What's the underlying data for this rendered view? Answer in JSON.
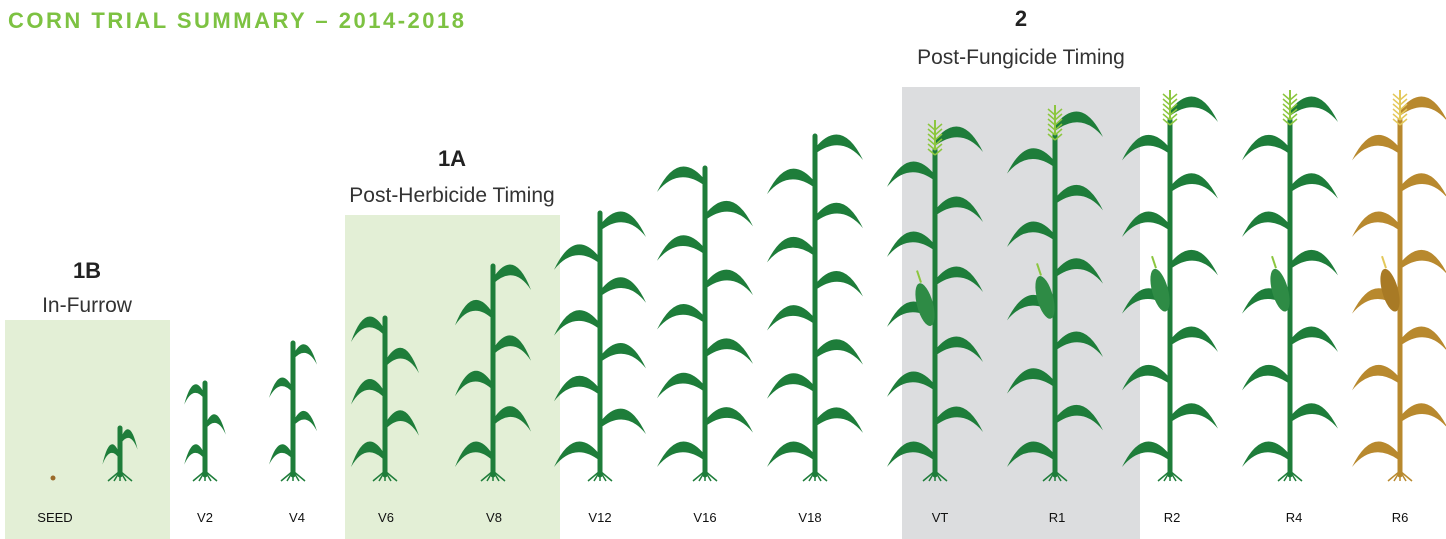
{
  "header": {
    "title": "CORN TRIAL SUMMARY – 2014-2018"
  },
  "timings": [
    {
      "code": "1B",
      "label": "In-Furrow"
    },
    {
      "code": "1A",
      "label": "Post-Herbicide Timing"
    },
    {
      "code": "2",
      "label": "Post-Fungicide Timing"
    }
  ],
  "stages": [
    "SEED",
    "V2",
    "V4",
    "V6",
    "V8",
    "V12",
    "V16",
    "V18",
    "VT",
    "R1",
    "R2",
    "R4",
    "R6"
  ]
}
